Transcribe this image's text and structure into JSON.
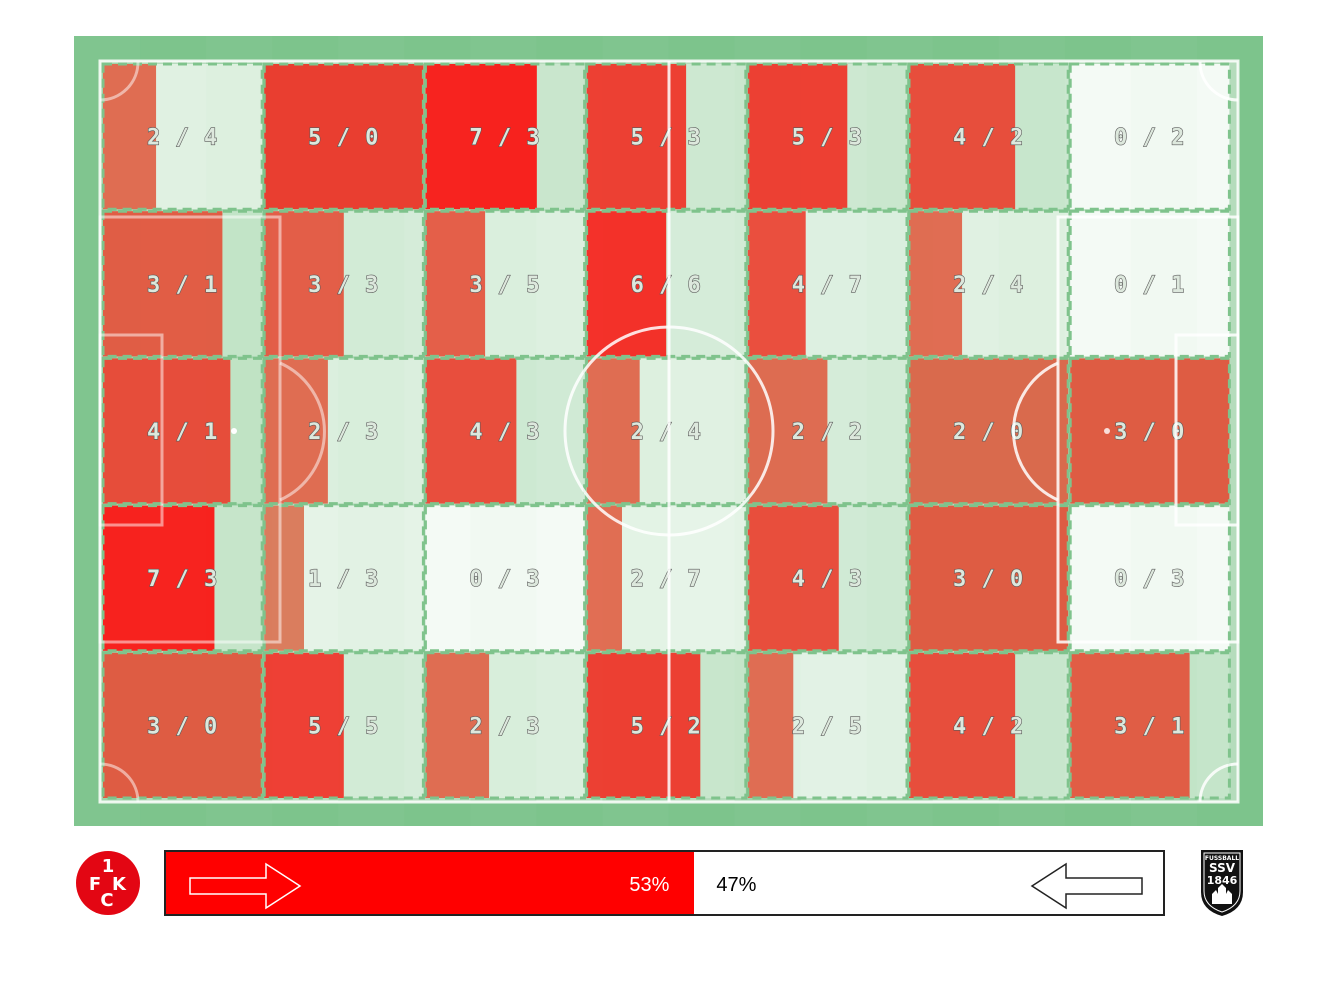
{
  "chart_data": {
    "type": "heatmap",
    "description_of_cells": "5 rows x 7 columns pitch zones; label format 'home / away'",
    "label_separator": " / ",
    "rows": [
      [
        {
          "home": 2,
          "away": 4
        },
        {
          "home": 5,
          "away": 0
        },
        {
          "home": 7,
          "away": 3
        },
        {
          "home": 5,
          "away": 3
        },
        {
          "home": 5,
          "away": 3
        },
        {
          "home": 4,
          "away": 2
        },
        {
          "home": 0,
          "away": 2
        }
      ],
      [
        {
          "home": 3,
          "away": 1
        },
        {
          "home": 3,
          "away": 3
        },
        {
          "home": 3,
          "away": 5
        },
        {
          "home": 6,
          "away": 6
        },
        {
          "home": 4,
          "away": 7
        },
        {
          "home": 2,
          "away": 4
        },
        {
          "home": 0,
          "away": 1
        }
      ],
      [
        {
          "home": 4,
          "away": 1
        },
        {
          "home": 2,
          "away": 3
        },
        {
          "home": 4,
          "away": 3
        },
        {
          "home": 2,
          "away": 4
        },
        {
          "home": 2,
          "away": 2
        },
        {
          "home": 2,
          "away": 0
        },
        {
          "home": 3,
          "away": 0
        }
      ],
      [
        {
          "home": 7,
          "away": 3
        },
        {
          "home": 1,
          "away": 3
        },
        {
          "home": 0,
          "away": 3
        },
        {
          "home": 2,
          "away": 7
        },
        {
          "home": 4,
          "away": 3
        },
        {
          "home": 3,
          "away": 0
        },
        {
          "home": 0,
          "away": 3
        }
      ],
      [
        {
          "home": 3,
          "away": 0
        },
        {
          "home": 5,
          "away": 5
        },
        {
          "home": 2,
          "away": 3
        },
        {
          "home": 5,
          "away": 2
        },
        {
          "home": 2,
          "away": 5
        },
        {
          "home": 4,
          "away": 2
        },
        {
          "home": 3,
          "away": 1
        }
      ]
    ],
    "home_color": "#ff0000",
    "away_color": "#ffffff",
    "pitch_color": "#7dc48c",
    "possession": {
      "home_percent": 53,
      "away_percent": 47
    }
  },
  "possession_bar": {
    "home_label": "53%",
    "away_label": "47%"
  },
  "logos": {
    "home": {
      "name": "fck-logo",
      "color": "#e30613",
      "text": "1FCK"
    },
    "away": {
      "name": "ssv-ulm-logo",
      "color": "#111111",
      "text_top": "FUSSBALL",
      "text_mid": "SSV",
      "text_bottom": "1846"
    }
  }
}
